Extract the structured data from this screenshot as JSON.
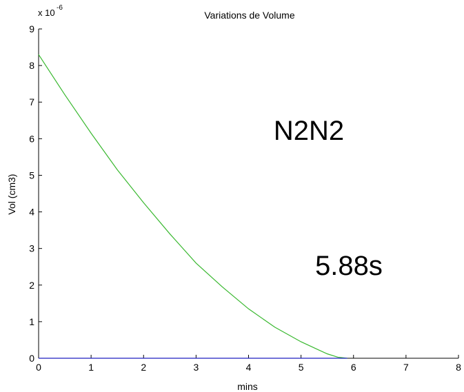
{
  "chart_data": {
    "type": "line",
    "title": "Variations de Volume",
    "xlabel": "mins",
    "ylabel": "Vol (cm3)",
    "y_multiplier_base": "x 10",
    "y_multiplier_exponent": "-6",
    "xlim": [
      0,
      8
    ],
    "ylim": [
      0,
      9
    ],
    "x_ticks": [
      "0",
      "1",
      "2",
      "3",
      "4",
      "5",
      "6",
      "7",
      "8"
    ],
    "y_ticks": [
      "0",
      "1",
      "2",
      "3",
      "4",
      "5",
      "6",
      "7",
      "8",
      "9"
    ],
    "grid": false,
    "annotations": [
      "N2N2",
      "5.88s"
    ],
    "series": [
      {
        "color": "#39b82f",
        "x": [
          0,
          0.5,
          1,
          1.5,
          2,
          2.5,
          3,
          3.5,
          4,
          4.5,
          5,
          5.3,
          5.5,
          5.7,
          5.88
        ],
        "y": [
          8.3,
          7.2,
          6.15,
          5.15,
          4.25,
          3.4,
          2.6,
          1.95,
          1.35,
          0.85,
          0.45,
          0.25,
          0.12,
          0.03,
          0
        ]
      },
      {
        "color": "#1f1fbf",
        "x": [
          0,
          5.88
        ],
        "y": [
          0,
          0
        ]
      }
    ]
  }
}
